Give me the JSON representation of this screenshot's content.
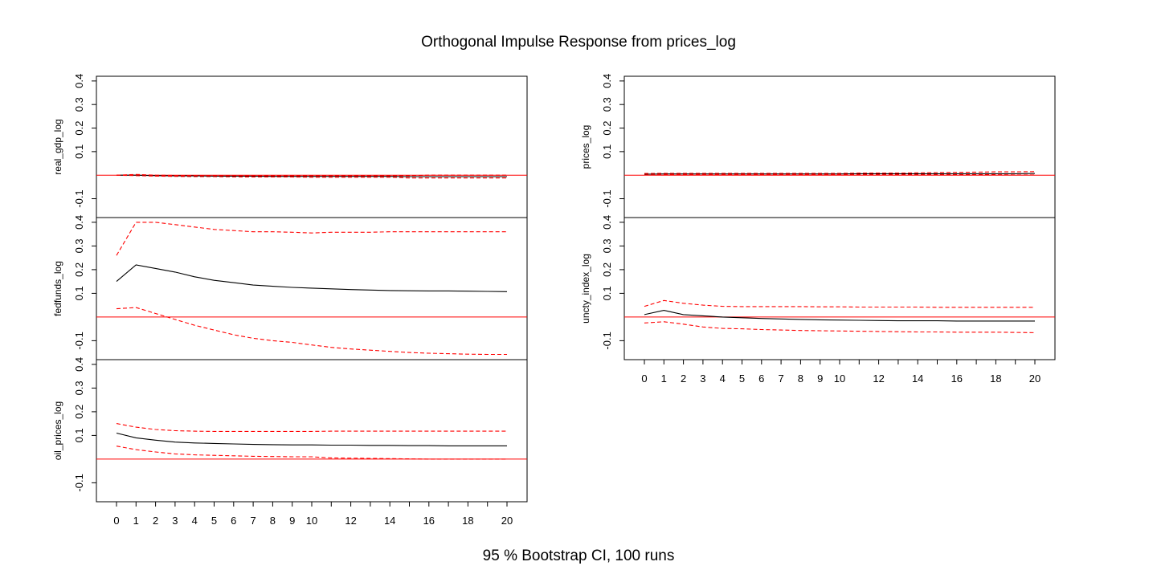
{
  "title": "Orthogonal Impulse Response from prices_log",
  "footer": "95 % Bootstrap CI,  100 runs",
  "colors": {
    "response": "#000000",
    "ci": "#ff0000",
    "zero": "#ff0000",
    "axis": "#000000"
  },
  "chart_data": [
    {
      "type": "line",
      "ylabel": "real_gdp_log",
      "x": [
        0,
        1,
        2,
        3,
        4,
        5,
        6,
        7,
        8,
        9,
        10,
        11,
        12,
        13,
        14,
        15,
        16,
        17,
        18,
        19,
        20
      ],
      "ylim": [
        -0.18,
        0.42
      ],
      "yticks": [
        -0.1,
        0.1,
        0.2,
        0.3,
        0.4
      ],
      "ytick_labels": [
        "-0.1",
        "0.1",
        "0.2",
        "0.3",
        "0.4"
      ],
      "series": [
        {
          "role": "response",
          "values": [
            0.0,
            0.0,
            -0.002,
            -0.003,
            -0.003,
            -0.004,
            -0.004,
            -0.004,
            -0.005,
            -0.005,
            -0.005,
            -0.005,
            -0.005,
            -0.005,
            -0.005,
            -0.006,
            -0.006,
            -0.006,
            -0.006,
            -0.006,
            -0.006
          ]
        },
        {
          "role": "upper",
          "values": [
            0.0,
            0.003,
            0.0,
            -0.001,
            -0.001,
            -0.001,
            -0.001,
            -0.002,
            -0.002,
            -0.002,
            -0.002,
            -0.002,
            -0.002,
            -0.002,
            -0.002,
            -0.002,
            0.0,
            0.0,
            0.0,
            0.0,
            0.0
          ]
        },
        {
          "role": "lower",
          "values": [
            0.0,
            -0.002,
            -0.004,
            -0.005,
            -0.006,
            -0.006,
            -0.007,
            -0.008,
            -0.008,
            -0.008,
            -0.009,
            -0.009,
            -0.009,
            -0.009,
            -0.009,
            -0.012,
            -0.012,
            -0.012,
            -0.012,
            -0.012,
            -0.012
          ]
        }
      ]
    },
    {
      "type": "line",
      "ylabel": "fedfunds_log",
      "x": [
        0,
        1,
        2,
        3,
        4,
        5,
        6,
        7,
        8,
        9,
        10,
        11,
        12,
        13,
        14,
        15,
        16,
        17,
        18,
        19,
        20
      ],
      "ylim": [
        -0.18,
        0.42
      ],
      "yticks": [
        -0.1,
        0.1,
        0.2,
        0.3,
        0.4
      ],
      "ytick_labels": [
        "-0.1",
        "0.1",
        "0.2",
        "0.3",
        "0.4"
      ],
      "series": [
        {
          "role": "response",
          "values": [
            0.15,
            0.22,
            0.205,
            0.19,
            0.17,
            0.155,
            0.145,
            0.135,
            0.13,
            0.125,
            0.122,
            0.119,
            0.116,
            0.114,
            0.112,
            0.111,
            0.11,
            0.11,
            0.109,
            0.108,
            0.107
          ]
        },
        {
          "role": "upper",
          "values": [
            0.26,
            0.4,
            0.4,
            0.39,
            0.38,
            0.37,
            0.365,
            0.36,
            0.36,
            0.358,
            0.355,
            0.358,
            0.358,
            0.358,
            0.36,
            0.36,
            0.36,
            0.36,
            0.36,
            0.36,
            0.36
          ]
        },
        {
          "role": "lower",
          "values": [
            0.035,
            0.04,
            0.015,
            -0.01,
            -0.035,
            -0.055,
            -0.075,
            -0.09,
            -0.1,
            -0.107,
            -0.118,
            -0.128,
            -0.135,
            -0.14,
            -0.145,
            -0.15,
            -0.153,
            -0.155,
            -0.157,
            -0.158,
            -0.158
          ]
        }
      ]
    },
    {
      "type": "line",
      "ylabel": "oil_prices_log",
      "x": [
        0,
        1,
        2,
        3,
        4,
        5,
        6,
        7,
        8,
        9,
        10,
        11,
        12,
        13,
        14,
        15,
        16,
        17,
        18,
        19,
        20
      ],
      "ylim": [
        -0.18,
        0.42
      ],
      "yticks": [
        -0.1,
        0.1,
        0.2,
        0.3,
        0.4
      ],
      "ytick_labels": [
        "-0.1",
        "0.1",
        "0.2",
        "0.3",
        "0.4"
      ],
      "xticks": [
        0,
        1,
        2,
        3,
        4,
        5,
        6,
        7,
        8,
        9,
        10,
        12,
        14,
        16,
        18,
        20
      ],
      "xtick_labels": [
        "0",
        "1",
        "2",
        "3",
        "4",
        "5",
        "6",
        "7",
        "8",
        "9",
        "10",
        "12",
        "14",
        "16",
        "18",
        "20"
      ],
      "series": [
        {
          "role": "response",
          "values": [
            0.11,
            0.09,
            0.08,
            0.072,
            0.068,
            0.066,
            0.064,
            0.062,
            0.061,
            0.06,
            0.06,
            0.059,
            0.059,
            0.058,
            0.058,
            0.057,
            0.057,
            0.056,
            0.056,
            0.056,
            0.056
          ]
        },
        {
          "role": "upper",
          "values": [
            0.15,
            0.135,
            0.125,
            0.12,
            0.118,
            0.117,
            0.117,
            0.117,
            0.117,
            0.117,
            0.117,
            0.118,
            0.118,
            0.118,
            0.118,
            0.118,
            0.118,
            0.118,
            0.118,
            0.118,
            0.118
          ]
        },
        {
          "role": "lower",
          "values": [
            0.055,
            0.04,
            0.03,
            0.022,
            0.018,
            0.016,
            0.014,
            0.012,
            0.011,
            0.01,
            0.01,
            0.005,
            0.004,
            0.003,
            0.002,
            0.001,
            0.0,
            0.0,
            0.0,
            0.0,
            0.0
          ]
        }
      ]
    },
    {
      "type": "line",
      "ylabel": "prices_log",
      "x": [
        0,
        1,
        2,
        3,
        4,
        5,
        6,
        7,
        8,
        9,
        10,
        11,
        12,
        13,
        14,
        15,
        16,
        17,
        18,
        19,
        20
      ],
      "ylim": [
        -0.18,
        0.42
      ],
      "yticks": [
        -0.1,
        0.1,
        0.2,
        0.3,
        0.4
      ],
      "ytick_labels": [
        "-0.1",
        "0.1",
        "0.2",
        "0.3",
        "0.4"
      ],
      "series": [
        {
          "role": "response",
          "values": [
            0.004,
            0.005,
            0.005,
            0.005,
            0.005,
            0.005,
            0.005,
            0.005,
            0.005,
            0.005,
            0.005,
            0.006,
            0.006,
            0.006,
            0.006,
            0.006,
            0.006,
            0.006,
            0.006,
            0.006,
            0.007
          ]
        },
        {
          "role": "upper",
          "values": [
            0.007,
            0.008,
            0.008,
            0.008,
            0.008,
            0.008,
            0.008,
            0.008,
            0.008,
            0.008,
            0.008,
            0.009,
            0.009,
            0.009,
            0.01,
            0.011,
            0.012,
            0.013,
            0.014,
            0.014,
            0.015
          ]
        },
        {
          "role": "lower",
          "values": [
            0.001,
            0.002,
            0.002,
            0.002,
            0.002,
            0.002,
            0.002,
            0.002,
            0.002,
            0.002,
            0.002,
            0.002,
            0.002,
            0.002,
            0.002,
            0.002,
            0.002,
            0.002,
            0.002,
            0.001,
            0.001
          ]
        }
      ]
    },
    {
      "type": "line",
      "ylabel": "uncty_index_log",
      "x": [
        0,
        1,
        2,
        3,
        4,
        5,
        6,
        7,
        8,
        9,
        10,
        11,
        12,
        13,
        14,
        15,
        16,
        17,
        18,
        19,
        20
      ],
      "ylim": [
        -0.18,
        0.42
      ],
      "yticks": [
        -0.1,
        0.1,
        0.2,
        0.3,
        0.4
      ],
      "ytick_labels": [
        "-0.1",
        "0.1",
        "0.2",
        "0.3",
        "0.4"
      ],
      "xticks": [
        0,
        1,
        2,
        3,
        4,
        5,
        6,
        7,
        8,
        9,
        10,
        12,
        14,
        16,
        18,
        20
      ],
      "xtick_labels": [
        "0",
        "1",
        "2",
        "3",
        "4",
        "5",
        "6",
        "7",
        "8",
        "9",
        "10",
        "12",
        "14",
        "16",
        "18",
        "20"
      ],
      "series": [
        {
          "role": "response",
          "values": [
            0.01,
            0.028,
            0.01,
            0.005,
            0.0,
            -0.003,
            -0.006,
            -0.008,
            -0.01,
            -0.012,
            -0.013,
            -0.014,
            -0.015,
            -0.016,
            -0.016,
            -0.016,
            -0.017,
            -0.017,
            -0.017,
            -0.017,
            -0.017
          ]
        },
        {
          "role": "upper",
          "values": [
            0.045,
            0.07,
            0.058,
            0.05,
            0.045,
            0.044,
            0.044,
            0.044,
            0.044,
            0.043,
            0.043,
            0.042,
            0.042,
            0.042,
            0.042,
            0.041,
            0.041,
            0.041,
            0.041,
            0.041,
            0.041
          ]
        },
        {
          "role": "lower",
          "values": [
            -0.025,
            -0.02,
            -0.03,
            -0.042,
            -0.048,
            -0.05,
            -0.053,
            -0.055,
            -0.057,
            -0.058,
            -0.059,
            -0.06,
            -0.061,
            -0.062,
            -0.063,
            -0.063,
            -0.064,
            -0.064,
            -0.064,
            -0.065,
            -0.066
          ]
        }
      ]
    }
  ]
}
